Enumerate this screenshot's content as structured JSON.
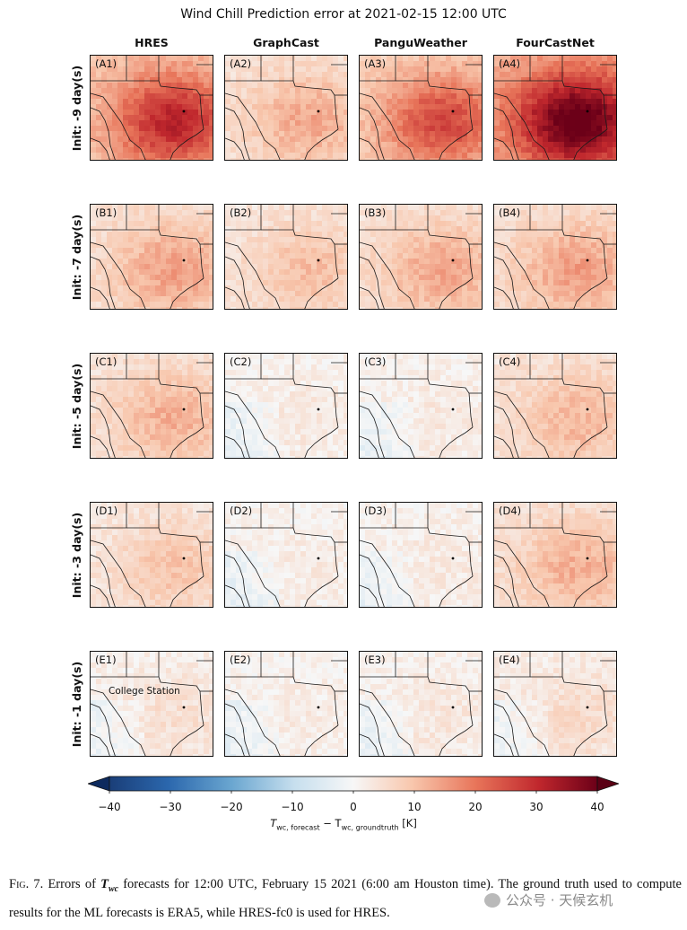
{
  "title": "Wind Chill Prediction error at 2021-02-15 12:00 UTC",
  "columns": [
    "HRES",
    "GraphCast",
    "PanguWeather",
    "FourCastNet"
  ],
  "rows": [
    "Init: -9 day(s)",
    "Init: -7 day(s)",
    "Init: -5 day(s)",
    "Init: -3 day(s)",
    "Init: -1 day(s)"
  ],
  "panels": [
    [
      "(A1)",
      "(A2)",
      "(A3)",
      "(A4)"
    ],
    [
      "(B1)",
      "(B2)",
      "(B3)",
      "(B4)"
    ],
    [
      "(C1)",
      "(C2)",
      "(C3)",
      "(C4)"
    ],
    [
      "(D1)",
      "(D2)",
      "(D3)",
      "(D4)"
    ],
    [
      "(E1)",
      "(E2)",
      "(E3)",
      "(E4)"
    ]
  ],
  "intensity": [
    [
      0.62,
      0.28,
      0.52,
      0.85
    ],
    [
      0.3,
      0.22,
      0.28,
      0.3
    ],
    [
      0.26,
      0.06,
      0.06,
      0.24
    ],
    [
      0.2,
      0.05,
      0.06,
      0.26
    ],
    [
      0.1,
      0.05,
      0.07,
      0.12
    ]
  ],
  "city_label": "College Station",
  "colorbar": {
    "ticks": [
      "−40",
      "−30",
      "−20",
      "−10",
      "0",
      "10",
      "20",
      "30",
      "40"
    ],
    "min": -40,
    "max": 40,
    "label_main": "T",
    "label_sub1": "wc, forecast",
    "label_mid": " − T",
    "label_sub2": "wc, groundtruth",
    "label_unit": " [K]"
  },
  "caption": {
    "fig": "Fig. 7.",
    "text1": " Errors of ",
    "var": "T",
    "var_sub": "wc",
    "text2": " forecasts for 12:00 UTC, February 15 2021 (6:00 am Houston time). The ground truth used to compute results for the ML forecasts is ERA5, while HRES-fc0 is used for HRES."
  },
  "watermark": "公众号 · 天候玄机",
  "colors": {
    "deep_red": "#8b0a1f",
    "mid_red": "#e8755a",
    "light": "#f7f2ef",
    "deep_blue": "#0b3b74"
  }
}
